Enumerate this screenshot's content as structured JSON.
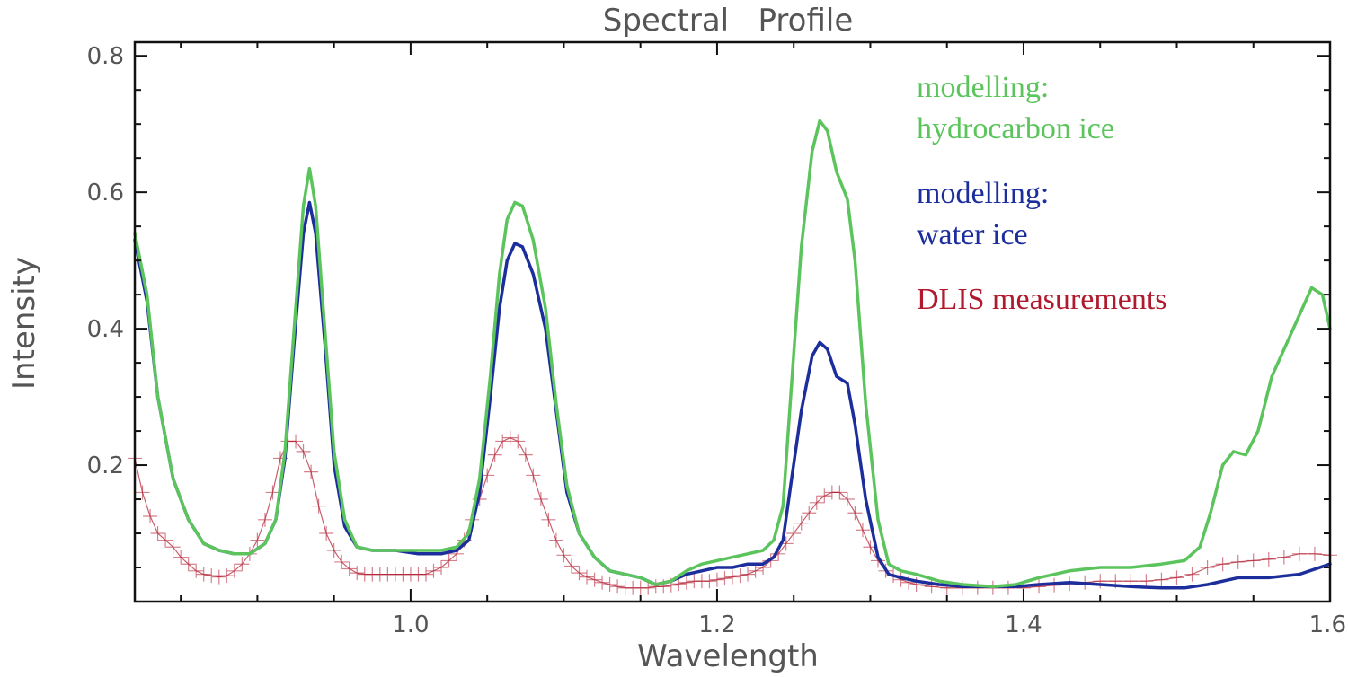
{
  "chart_data": {
    "type": "line",
    "title": "Spectral   Profile",
    "xlabel": "Wavelength",
    "ylabel": "Intensity",
    "xlim": [
      0.82,
      1.6
    ],
    "ylim": [
      0.0,
      0.82
    ],
    "xticks": [
      1.0,
      1.2,
      1.4,
      1.6
    ],
    "xtick_labels": [
      "1.0",
      "1.2",
      "1.4",
      "1.6"
    ],
    "yticks": [
      0.2,
      0.4,
      0.6,
      0.8
    ],
    "ytick_labels": [
      "0.2",
      "0.4",
      "0.6",
      "0.8"
    ],
    "grid": false,
    "legend_placement": "top-right",
    "series": [
      {
        "name": "modelling:\nhydrocarbon ice",
        "legend_lines": [
          "modelling:",
          "hydrocarbon ice"
        ],
        "color": "#5cc45c",
        "marker": "none",
        "points": [
          [
            0.82,
            0.54
          ],
          [
            0.828,
            0.45
          ],
          [
            0.835,
            0.3
          ],
          [
            0.845,
            0.18
          ],
          [
            0.855,
            0.12
          ],
          [
            0.865,
            0.085
          ],
          [
            0.875,
            0.075
          ],
          [
            0.885,
            0.07
          ],
          [
            0.895,
            0.07
          ],
          [
            0.905,
            0.085
          ],
          [
            0.912,
            0.12
          ],
          [
            0.918,
            0.22
          ],
          [
            0.924,
            0.4
          ],
          [
            0.93,
            0.58
          ],
          [
            0.934,
            0.635
          ],
          [
            0.938,
            0.58
          ],
          [
            0.944,
            0.4
          ],
          [
            0.95,
            0.22
          ],
          [
            0.957,
            0.12
          ],
          [
            0.965,
            0.08
          ],
          [
            0.975,
            0.075
          ],
          [
            0.99,
            0.075
          ],
          [
            1.005,
            0.075
          ],
          [
            1.02,
            0.075
          ],
          [
            1.03,
            0.08
          ],
          [
            1.038,
            0.1
          ],
          [
            1.045,
            0.18
          ],
          [
            1.052,
            0.33
          ],
          [
            1.058,
            0.48
          ],
          [
            1.063,
            0.56
          ],
          [
            1.068,
            0.585
          ],
          [
            1.073,
            0.58
          ],
          [
            1.08,
            0.53
          ],
          [
            1.088,
            0.43
          ],
          [
            1.095,
            0.29
          ],
          [
            1.102,
            0.17
          ],
          [
            1.11,
            0.1
          ],
          [
            1.12,
            0.065
          ],
          [
            1.13,
            0.045
          ],
          [
            1.14,
            0.04
          ],
          [
            1.15,
            0.035
          ],
          [
            1.16,
            0.025
          ],
          [
            1.17,
            0.03
          ],
          [
            1.18,
            0.045
          ],
          [
            1.19,
            0.055
          ],
          [
            1.2,
            0.06
          ],
          [
            1.21,
            0.065
          ],
          [
            1.22,
            0.07
          ],
          [
            1.23,
            0.075
          ],
          [
            1.237,
            0.09
          ],
          [
            1.243,
            0.14
          ],
          [
            1.248,
            0.3
          ],
          [
            1.255,
            0.52
          ],
          [
            1.262,
            0.66
          ],
          [
            1.267,
            0.705
          ],
          [
            1.272,
            0.69
          ],
          [
            1.278,
            0.63
          ],
          [
            1.285,
            0.59
          ],
          [
            1.29,
            0.5
          ],
          [
            1.297,
            0.29
          ],
          [
            1.305,
            0.12
          ],
          [
            1.312,
            0.055
          ],
          [
            1.32,
            0.045
          ],
          [
            1.33,
            0.04
          ],
          [
            1.345,
            0.03
          ],
          [
            1.36,
            0.025
          ],
          [
            1.38,
            0.022
          ],
          [
            1.395,
            0.025
          ],
          [
            1.41,
            0.035
          ],
          [
            1.43,
            0.045
          ],
          [
            1.45,
            0.05
          ],
          [
            1.47,
            0.05
          ],
          [
            1.49,
            0.055
          ],
          [
            1.505,
            0.06
          ],
          [
            1.515,
            0.08
          ],
          [
            1.522,
            0.13
          ],
          [
            1.53,
            0.2
          ],
          [
            1.537,
            0.22
          ],
          [
            1.545,
            0.215
          ],
          [
            1.553,
            0.25
          ],
          [
            1.562,
            0.33
          ],
          [
            1.572,
            0.38
          ],
          [
            1.58,
            0.42
          ],
          [
            1.588,
            0.46
          ],
          [
            1.595,
            0.45
          ],
          [
            1.6,
            0.4
          ]
        ]
      },
      {
        "name": "modelling:\nwater ice",
        "legend_lines": [
          "modelling:",
          "water ice"
        ],
        "color": "#1c2e9c",
        "marker": "none",
        "points": [
          [
            0.82,
            0.53
          ],
          [
            0.828,
            0.44
          ],
          [
            0.835,
            0.3
          ],
          [
            0.845,
            0.18
          ],
          [
            0.855,
            0.12
          ],
          [
            0.865,
            0.085
          ],
          [
            0.875,
            0.075
          ],
          [
            0.885,
            0.07
          ],
          [
            0.895,
            0.07
          ],
          [
            0.905,
            0.085
          ],
          [
            0.912,
            0.12
          ],
          [
            0.918,
            0.21
          ],
          [
            0.924,
            0.38
          ],
          [
            0.93,
            0.54
          ],
          [
            0.934,
            0.585
          ],
          [
            0.938,
            0.54
          ],
          [
            0.944,
            0.38
          ],
          [
            0.95,
            0.2
          ],
          [
            0.957,
            0.11
          ],
          [
            0.965,
            0.08
          ],
          [
            0.975,
            0.075
          ],
          [
            0.99,
            0.075
          ],
          [
            1.005,
            0.07
          ],
          [
            1.02,
            0.07
          ],
          [
            1.03,
            0.075
          ],
          [
            1.038,
            0.09
          ],
          [
            1.045,
            0.16
          ],
          [
            1.052,
            0.3
          ],
          [
            1.058,
            0.43
          ],
          [
            1.063,
            0.5
          ],
          [
            1.068,
            0.525
          ],
          [
            1.073,
            0.52
          ],
          [
            1.08,
            0.48
          ],
          [
            1.088,
            0.4
          ],
          [
            1.095,
            0.28
          ],
          [
            1.102,
            0.16
          ],
          [
            1.11,
            0.1
          ],
          [
            1.12,
            0.065
          ],
          [
            1.13,
            0.045
          ],
          [
            1.14,
            0.04
          ],
          [
            1.15,
            0.035
          ],
          [
            1.16,
            0.025
          ],
          [
            1.17,
            0.03
          ],
          [
            1.18,
            0.04
          ],
          [
            1.19,
            0.045
          ],
          [
            1.2,
            0.05
          ],
          [
            1.21,
            0.05
          ],
          [
            1.22,
            0.055
          ],
          [
            1.23,
            0.055
          ],
          [
            1.237,
            0.065
          ],
          [
            1.243,
            0.09
          ],
          [
            1.248,
            0.17
          ],
          [
            1.255,
            0.28
          ],
          [
            1.262,
            0.36
          ],
          [
            1.267,
            0.38
          ],
          [
            1.272,
            0.37
          ],
          [
            1.278,
            0.33
          ],
          [
            1.285,
            0.32
          ],
          [
            1.29,
            0.26
          ],
          [
            1.297,
            0.15
          ],
          [
            1.305,
            0.065
          ],
          [
            1.312,
            0.04
          ],
          [
            1.32,
            0.035
          ],
          [
            1.33,
            0.03
          ],
          [
            1.345,
            0.025
          ],
          [
            1.36,
            0.022
          ],
          [
            1.38,
            0.022
          ],
          [
            1.395,
            0.022
          ],
          [
            1.41,
            0.025
          ],
          [
            1.43,
            0.028
          ],
          [
            1.45,
            0.025
          ],
          [
            1.47,
            0.022
          ],
          [
            1.49,
            0.02
          ],
          [
            1.505,
            0.02
          ],
          [
            1.52,
            0.025
          ],
          [
            1.54,
            0.035
          ],
          [
            1.56,
            0.035
          ],
          [
            1.58,
            0.04
          ],
          [
            1.6,
            0.055
          ]
        ]
      },
      {
        "name": "DLIS measurements",
        "legend_lines": [
          "DLIS measurements"
        ],
        "color": "#b01a2e",
        "marker": "plus",
        "points": [
          [
            0.82,
            0.21
          ],
          [
            0.825,
            0.16
          ],
          [
            0.83,
            0.125
          ],
          [
            0.835,
            0.1
          ],
          [
            0.84,
            0.09
          ],
          [
            0.845,
            0.08
          ],
          [
            0.85,
            0.065
          ],
          [
            0.855,
            0.055
          ],
          [
            0.86,
            0.045
          ],
          [
            0.865,
            0.04
          ],
          [
            0.87,
            0.038
          ],
          [
            0.875,
            0.036
          ],
          [
            0.88,
            0.038
          ],
          [
            0.885,
            0.045
          ],
          [
            0.89,
            0.055
          ],
          [
            0.895,
            0.07
          ],
          [
            0.9,
            0.09
          ],
          [
            0.905,
            0.12
          ],
          [
            0.91,
            0.16
          ],
          [
            0.915,
            0.21
          ],
          [
            0.92,
            0.235
          ],
          [
            0.925,
            0.235
          ],
          [
            0.93,
            0.22
          ],
          [
            0.935,
            0.19
          ],
          [
            0.94,
            0.14
          ],
          [
            0.945,
            0.1
          ],
          [
            0.95,
            0.075
          ],
          [
            0.955,
            0.058
          ],
          [
            0.96,
            0.048
          ],
          [
            0.965,
            0.042
          ],
          [
            0.97,
            0.04
          ],
          [
            0.975,
            0.04
          ],
          [
            0.98,
            0.04
          ],
          [
            0.985,
            0.04
          ],
          [
            0.99,
            0.04
          ],
          [
            0.995,
            0.04
          ],
          [
            1.0,
            0.04
          ],
          [
            1.005,
            0.04
          ],
          [
            1.01,
            0.04
          ],
          [
            1.015,
            0.045
          ],
          [
            1.02,
            0.05
          ],
          [
            1.025,
            0.06
          ],
          [
            1.03,
            0.07
          ],
          [
            1.035,
            0.09
          ],
          [
            1.04,
            0.12
          ],
          [
            1.045,
            0.15
          ],
          [
            1.05,
            0.185
          ],
          [
            1.055,
            0.215
          ],
          [
            1.06,
            0.235
          ],
          [
            1.065,
            0.24
          ],
          [
            1.07,
            0.235
          ],
          [
            1.075,
            0.215
          ],
          [
            1.08,
            0.185
          ],
          [
            1.085,
            0.15
          ],
          [
            1.09,
            0.12
          ],
          [
            1.095,
            0.09
          ],
          [
            1.1,
            0.068
          ],
          [
            1.105,
            0.052
          ],
          [
            1.11,
            0.042
          ],
          [
            1.115,
            0.036
          ],
          [
            1.12,
            0.032
          ],
          [
            1.125,
            0.028
          ],
          [
            1.13,
            0.025
          ],
          [
            1.135,
            0.022
          ],
          [
            1.14,
            0.02
          ],
          [
            1.145,
            0.02
          ],
          [
            1.15,
            0.02
          ],
          [
            1.155,
            0.02
          ],
          [
            1.16,
            0.022
          ],
          [
            1.165,
            0.022
          ],
          [
            1.17,
            0.024
          ],
          [
            1.175,
            0.026
          ],
          [
            1.18,
            0.028
          ],
          [
            1.185,
            0.03
          ],
          [
            1.19,
            0.03
          ],
          [
            1.195,
            0.03
          ],
          [
            1.2,
            0.032
          ],
          [
            1.205,
            0.034
          ],
          [
            1.21,
            0.036
          ],
          [
            1.215,
            0.038
          ],
          [
            1.22,
            0.04
          ],
          [
            1.225,
            0.045
          ],
          [
            1.23,
            0.05
          ],
          [
            1.235,
            0.06
          ],
          [
            1.24,
            0.07
          ],
          [
            1.245,
            0.085
          ],
          [
            1.25,
            0.1
          ],
          [
            1.255,
            0.115
          ],
          [
            1.26,
            0.13
          ],
          [
            1.265,
            0.145
          ],
          [
            1.27,
            0.155
          ],
          [
            1.275,
            0.16
          ],
          [
            1.28,
            0.16
          ],
          [
            1.285,
            0.15
          ],
          [
            1.29,
            0.13
          ],
          [
            1.295,
            0.105
          ],
          [
            1.3,
            0.08
          ],
          [
            1.305,
            0.06
          ],
          [
            1.31,
            0.045
          ],
          [
            1.315,
            0.038
          ],
          [
            1.32,
            0.032
          ],
          [
            1.325,
            0.028
          ],
          [
            1.33,
            0.025
          ],
          [
            1.34,
            0.022
          ],
          [
            1.35,
            0.02
          ],
          [
            1.36,
            0.02
          ],
          [
            1.37,
            0.02
          ],
          [
            1.38,
            0.02
          ],
          [
            1.39,
            0.02
          ],
          [
            1.4,
            0.02
          ],
          [
            1.41,
            0.022
          ],
          [
            1.42,
            0.024
          ],
          [
            1.43,
            0.026
          ],
          [
            1.44,
            0.028
          ],
          [
            1.45,
            0.03
          ],
          [
            1.46,
            0.03
          ],
          [
            1.47,
            0.03
          ],
          [
            1.48,
            0.03
          ],
          [
            1.49,
            0.032
          ],
          [
            1.5,
            0.035
          ],
          [
            1.51,
            0.04
          ],
          [
            1.52,
            0.05
          ],
          [
            1.53,
            0.055
          ],
          [
            1.54,
            0.058
          ],
          [
            1.55,
            0.06
          ],
          [
            1.56,
            0.062
          ],
          [
            1.57,
            0.065
          ],
          [
            1.58,
            0.07
          ],
          [
            1.59,
            0.07
          ],
          [
            1.6,
            0.068
          ]
        ]
      }
    ]
  }
}
